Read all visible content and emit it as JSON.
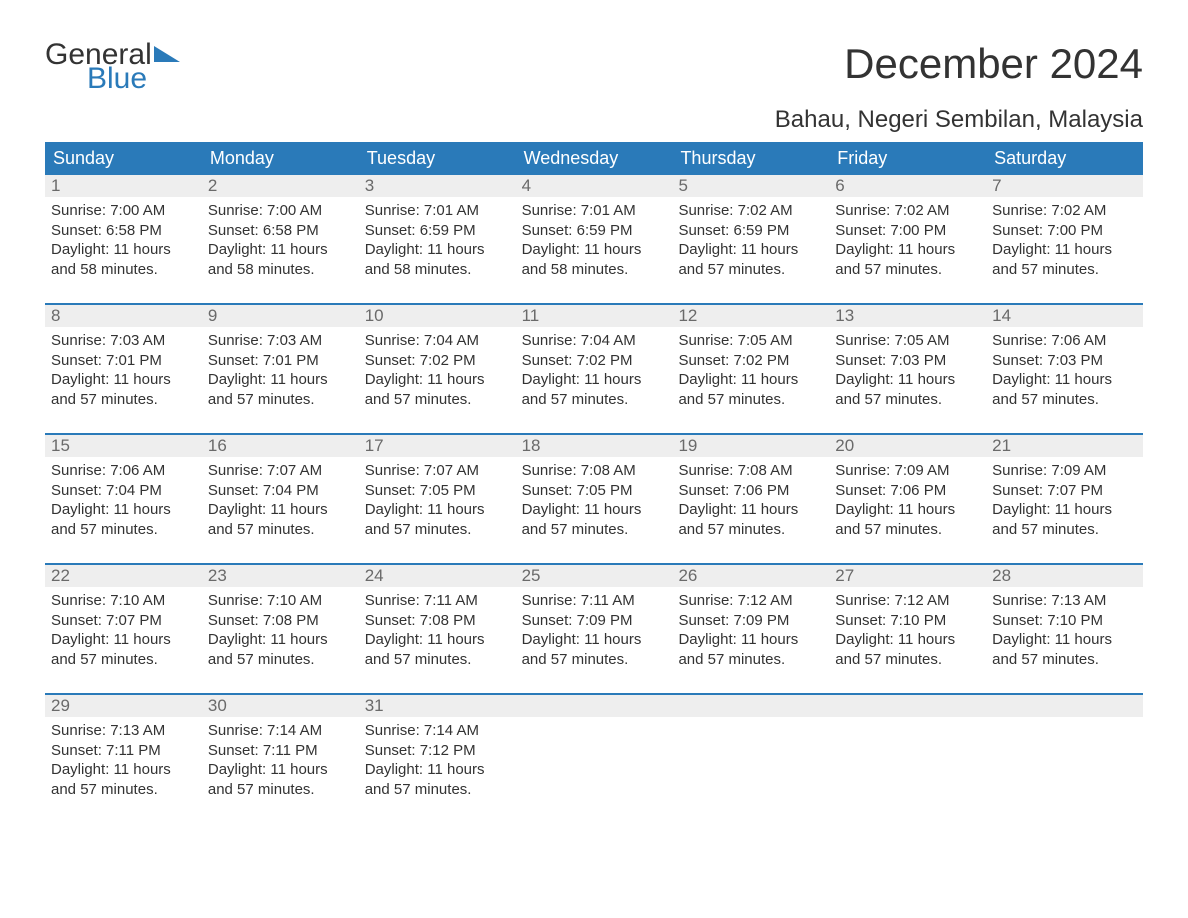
{
  "logo": {
    "word1": "General",
    "word2": "Blue"
  },
  "title": "December 2024",
  "location": "Bahau, Negeri Sembilan, Malaysia",
  "colors": {
    "accent": "#2a7ab9",
    "header_text": "#ffffff",
    "daynum_bg": "#eeeeee",
    "daynum_fg": "#6a6a6a",
    "body_text": "#333333",
    "background": "#ffffff"
  },
  "day_headers": [
    "Sunday",
    "Monday",
    "Tuesday",
    "Wednesday",
    "Thursday",
    "Friday",
    "Saturday"
  ],
  "weeks": [
    [
      {
        "n": "1",
        "sunrise": "Sunrise: 7:00 AM",
        "sunset": "Sunset: 6:58 PM",
        "d1": "Daylight: 11 hours",
        "d2": "and 58 minutes."
      },
      {
        "n": "2",
        "sunrise": "Sunrise: 7:00 AM",
        "sunset": "Sunset: 6:58 PM",
        "d1": "Daylight: 11 hours",
        "d2": "and 58 minutes."
      },
      {
        "n": "3",
        "sunrise": "Sunrise: 7:01 AM",
        "sunset": "Sunset: 6:59 PM",
        "d1": "Daylight: 11 hours",
        "d2": "and 58 minutes."
      },
      {
        "n": "4",
        "sunrise": "Sunrise: 7:01 AM",
        "sunset": "Sunset: 6:59 PM",
        "d1": "Daylight: 11 hours",
        "d2": "and 58 minutes."
      },
      {
        "n": "5",
        "sunrise": "Sunrise: 7:02 AM",
        "sunset": "Sunset: 6:59 PM",
        "d1": "Daylight: 11 hours",
        "d2": "and 57 minutes."
      },
      {
        "n": "6",
        "sunrise": "Sunrise: 7:02 AM",
        "sunset": "Sunset: 7:00 PM",
        "d1": "Daylight: 11 hours",
        "d2": "and 57 minutes."
      },
      {
        "n": "7",
        "sunrise": "Sunrise: 7:02 AM",
        "sunset": "Sunset: 7:00 PM",
        "d1": "Daylight: 11 hours",
        "d2": "and 57 minutes."
      }
    ],
    [
      {
        "n": "8",
        "sunrise": "Sunrise: 7:03 AM",
        "sunset": "Sunset: 7:01 PM",
        "d1": "Daylight: 11 hours",
        "d2": "and 57 minutes."
      },
      {
        "n": "9",
        "sunrise": "Sunrise: 7:03 AM",
        "sunset": "Sunset: 7:01 PM",
        "d1": "Daylight: 11 hours",
        "d2": "and 57 minutes."
      },
      {
        "n": "10",
        "sunrise": "Sunrise: 7:04 AM",
        "sunset": "Sunset: 7:02 PM",
        "d1": "Daylight: 11 hours",
        "d2": "and 57 minutes."
      },
      {
        "n": "11",
        "sunrise": "Sunrise: 7:04 AM",
        "sunset": "Sunset: 7:02 PM",
        "d1": "Daylight: 11 hours",
        "d2": "and 57 minutes."
      },
      {
        "n": "12",
        "sunrise": "Sunrise: 7:05 AM",
        "sunset": "Sunset: 7:02 PM",
        "d1": "Daylight: 11 hours",
        "d2": "and 57 minutes."
      },
      {
        "n": "13",
        "sunrise": "Sunrise: 7:05 AM",
        "sunset": "Sunset: 7:03 PM",
        "d1": "Daylight: 11 hours",
        "d2": "and 57 minutes."
      },
      {
        "n": "14",
        "sunrise": "Sunrise: 7:06 AM",
        "sunset": "Sunset: 7:03 PM",
        "d1": "Daylight: 11 hours",
        "d2": "and 57 minutes."
      }
    ],
    [
      {
        "n": "15",
        "sunrise": "Sunrise: 7:06 AM",
        "sunset": "Sunset: 7:04 PM",
        "d1": "Daylight: 11 hours",
        "d2": "and 57 minutes."
      },
      {
        "n": "16",
        "sunrise": "Sunrise: 7:07 AM",
        "sunset": "Sunset: 7:04 PM",
        "d1": "Daylight: 11 hours",
        "d2": "and 57 minutes."
      },
      {
        "n": "17",
        "sunrise": "Sunrise: 7:07 AM",
        "sunset": "Sunset: 7:05 PM",
        "d1": "Daylight: 11 hours",
        "d2": "and 57 minutes."
      },
      {
        "n": "18",
        "sunrise": "Sunrise: 7:08 AM",
        "sunset": "Sunset: 7:05 PM",
        "d1": "Daylight: 11 hours",
        "d2": "and 57 minutes."
      },
      {
        "n": "19",
        "sunrise": "Sunrise: 7:08 AM",
        "sunset": "Sunset: 7:06 PM",
        "d1": "Daylight: 11 hours",
        "d2": "and 57 minutes."
      },
      {
        "n": "20",
        "sunrise": "Sunrise: 7:09 AM",
        "sunset": "Sunset: 7:06 PM",
        "d1": "Daylight: 11 hours",
        "d2": "and 57 minutes."
      },
      {
        "n": "21",
        "sunrise": "Sunrise: 7:09 AM",
        "sunset": "Sunset: 7:07 PM",
        "d1": "Daylight: 11 hours",
        "d2": "and 57 minutes."
      }
    ],
    [
      {
        "n": "22",
        "sunrise": "Sunrise: 7:10 AM",
        "sunset": "Sunset: 7:07 PM",
        "d1": "Daylight: 11 hours",
        "d2": "and 57 minutes."
      },
      {
        "n": "23",
        "sunrise": "Sunrise: 7:10 AM",
        "sunset": "Sunset: 7:08 PM",
        "d1": "Daylight: 11 hours",
        "d2": "and 57 minutes."
      },
      {
        "n": "24",
        "sunrise": "Sunrise: 7:11 AM",
        "sunset": "Sunset: 7:08 PM",
        "d1": "Daylight: 11 hours",
        "d2": "and 57 minutes."
      },
      {
        "n": "25",
        "sunrise": "Sunrise: 7:11 AM",
        "sunset": "Sunset: 7:09 PM",
        "d1": "Daylight: 11 hours",
        "d2": "and 57 minutes."
      },
      {
        "n": "26",
        "sunrise": "Sunrise: 7:12 AM",
        "sunset": "Sunset: 7:09 PM",
        "d1": "Daylight: 11 hours",
        "d2": "and 57 minutes."
      },
      {
        "n": "27",
        "sunrise": "Sunrise: 7:12 AM",
        "sunset": "Sunset: 7:10 PM",
        "d1": "Daylight: 11 hours",
        "d2": "and 57 minutes."
      },
      {
        "n": "28",
        "sunrise": "Sunrise: 7:13 AM",
        "sunset": "Sunset: 7:10 PM",
        "d1": "Daylight: 11 hours",
        "d2": "and 57 minutes."
      }
    ],
    [
      {
        "n": "29",
        "sunrise": "Sunrise: 7:13 AM",
        "sunset": "Sunset: 7:11 PM",
        "d1": "Daylight: 11 hours",
        "d2": "and 57 minutes."
      },
      {
        "n": "30",
        "sunrise": "Sunrise: 7:14 AM",
        "sunset": "Sunset: 7:11 PM",
        "d1": "Daylight: 11 hours",
        "d2": "and 57 minutes."
      },
      {
        "n": "31",
        "sunrise": "Sunrise: 7:14 AM",
        "sunset": "Sunset: 7:12 PM",
        "d1": "Daylight: 11 hours",
        "d2": "and 57 minutes."
      },
      null,
      null,
      null,
      null
    ]
  ]
}
